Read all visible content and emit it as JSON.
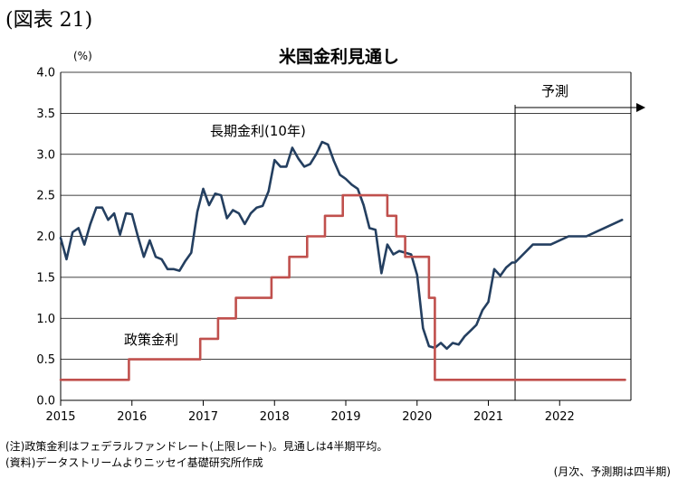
{
  "figure_label": "(図表 21)",
  "notes": {
    "note1": "(注)政策金利はフェデラルファンドレート(上限レート)。見通しは4半期平均。",
    "note2": "(資料)データストリームよりニッセイ基礎研究所作成",
    "frequency": "(月次、予測期は四半期)"
  },
  "chart_data": {
    "type": "line",
    "title": "米国金利見通し",
    "ylabel": "(%)",
    "xlabel": "",
    "ylim": [
      0,
      4.0
    ],
    "xlim": [
      2015.0,
      2023.0
    ],
    "yticks": [
      "0.0",
      "0.5",
      "1.0",
      "1.5",
      "2.0",
      "2.5",
      "3.0",
      "3.5",
      "4.0"
    ],
    "xticks": [
      "2015",
      "2016",
      "2017",
      "2018",
      "2019",
      "2020",
      "2021",
      "2022"
    ],
    "grid": true,
    "forecast": {
      "label": "予測",
      "start": 2021.375
    },
    "series": [
      {
        "name": "長期金利(10年)",
        "color": "#243f60",
        "x": [
          2015.0,
          2015.083,
          2015.167,
          2015.25,
          2015.333,
          2015.417,
          2015.5,
          2015.583,
          2015.667,
          2015.75,
          2015.833,
          2015.917,
          2016.0,
          2016.083,
          2016.167,
          2016.25,
          2016.333,
          2016.417,
          2016.5,
          2016.583,
          2016.667,
          2016.75,
          2016.833,
          2016.917,
          2017.0,
          2017.083,
          2017.167,
          2017.25,
          2017.333,
          2017.417,
          2017.5,
          2017.583,
          2017.667,
          2017.75,
          2017.833,
          2017.917,
          2018.0,
          2018.083,
          2018.167,
          2018.25,
          2018.333,
          2018.417,
          2018.5,
          2018.583,
          2018.667,
          2018.75,
          2018.833,
          2018.917,
          2019.0,
          2019.083,
          2019.167,
          2019.25,
          2019.333,
          2019.417,
          2019.5,
          2019.583,
          2019.667,
          2019.75,
          2019.833,
          2019.917,
          2020.0,
          2020.083,
          2020.167,
          2020.25,
          2020.333,
          2020.417,
          2020.5,
          2020.583,
          2020.667,
          2020.75,
          2020.833,
          2020.917,
          2021.0,
          2021.083,
          2021.167,
          2021.25,
          2021.333,
          2021.375,
          2021.625,
          2021.875,
          2022.125,
          2022.375,
          2022.625,
          2022.875
        ],
        "values": [
          1.98,
          1.72,
          2.05,
          2.1,
          1.9,
          2.15,
          2.35,
          2.35,
          2.2,
          2.28,
          2.02,
          2.28,
          2.27,
          2.0,
          1.75,
          1.95,
          1.75,
          1.72,
          1.6,
          1.6,
          1.58,
          1.7,
          1.8,
          2.3,
          2.58,
          2.38,
          2.52,
          2.5,
          2.22,
          2.32,
          2.28,
          2.15,
          2.28,
          2.35,
          2.37,
          2.55,
          2.93,
          2.85,
          2.85,
          3.08,
          2.95,
          2.85,
          2.88,
          3.0,
          3.15,
          3.12,
          2.92,
          2.75,
          2.7,
          2.63,
          2.58,
          2.38,
          2.1,
          2.08,
          1.55,
          1.9,
          1.78,
          1.82,
          1.8,
          1.78,
          1.53,
          0.88,
          0.66,
          0.64,
          0.7,
          0.63,
          0.7,
          0.68,
          0.78,
          0.85,
          0.92,
          1.1,
          1.2,
          1.6,
          1.52,
          1.62,
          1.68,
          1.68,
          1.9,
          1.9,
          2.0,
          2.0,
          2.1,
          2.2
        ]
      },
      {
        "name": "政策金利",
        "color": "#c0504d",
        "x": [
          2015.0,
          2015.958,
          2015.958,
          2016.958,
          2016.958,
          2017.208,
          2017.208,
          2017.458,
          2017.458,
          2017.958,
          2017.958,
          2018.208,
          2018.208,
          2018.458,
          2018.458,
          2018.708,
          2018.708,
          2018.958,
          2018.958,
          2019.583,
          2019.583,
          2019.708,
          2019.708,
          2019.833,
          2019.833,
          2020.167,
          2020.167,
          2020.25,
          2020.25,
          2022.917
        ],
        "values": [
          0.25,
          0.25,
          0.5,
          0.5,
          0.75,
          0.75,
          1.0,
          1.0,
          1.25,
          1.25,
          1.5,
          1.5,
          1.75,
          1.75,
          2.0,
          2.0,
          2.25,
          2.25,
          2.5,
          2.5,
          2.25,
          2.25,
          2.0,
          2.0,
          1.75,
          1.75,
          1.25,
          1.25,
          0.25,
          0.25
        ]
      }
    ]
  }
}
